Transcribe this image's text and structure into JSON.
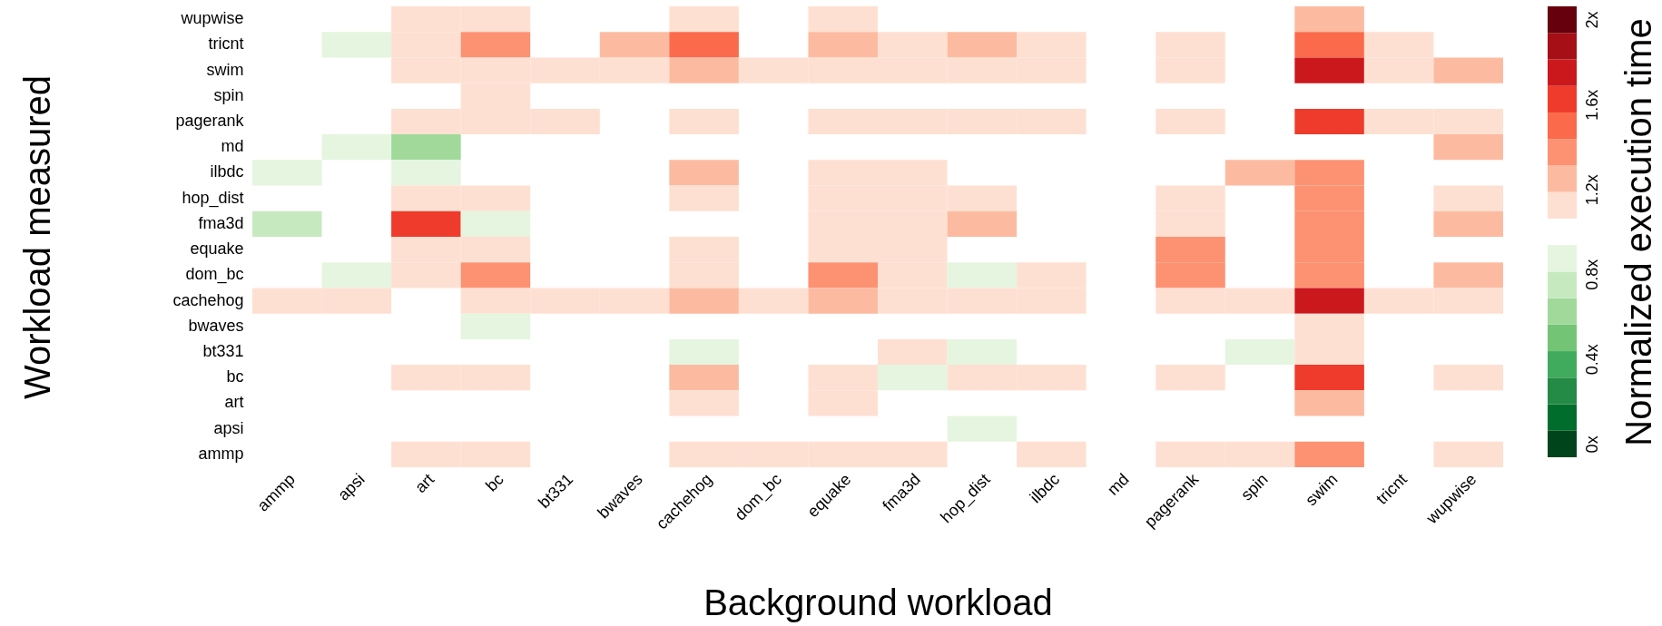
{
  "chart_data": {
    "type": "heatmap",
    "xlabel": "Background workload",
    "ylabel": "Workload measured",
    "clabel": "Normalized execution time",
    "categories": [
      "ammp",
      "apsi",
      "art",
      "bc",
      "bt331",
      "bwaves",
      "cachehog",
      "dom_bc",
      "equake",
      "fma3d",
      "hop_dist",
      "ilbdc",
      "md",
      "pagerank",
      "spin",
      "swim",
      "tricnt",
      "wupwise"
    ],
    "y_categories": [
      "wupwise",
      "tricnt",
      "swim",
      "spin",
      "pagerank",
      "md",
      "ilbdc",
      "hop_dist",
      "fma3d",
      "equake",
      "dom_bc",
      "cachehog",
      "bwaves",
      "bt331",
      "bc",
      "art",
      "apsi",
      "ammp"
    ],
    "cells": [
      [
        null,
        null,
        1.125,
        1.125,
        null,
        null,
        1.125,
        null,
        1.125,
        null,
        null,
        null,
        null,
        null,
        null,
        1.25,
        null,
        null
      ],
      [
        null,
        0.875,
        1.125,
        1.375,
        null,
        1.25,
        1.5,
        null,
        1.25,
        1.125,
        1.25,
        1.125,
        null,
        1.125,
        null,
        1.5,
        1.125,
        null
      ],
      [
        null,
        null,
        1.125,
        1.125,
        1.125,
        1.125,
        1.25,
        1.125,
        1.125,
        1.125,
        1.125,
        1.125,
        null,
        1.125,
        null,
        1.75,
        1.125,
        1.25
      ],
      [
        null,
        null,
        null,
        1.125,
        null,
        null,
        null,
        null,
        null,
        null,
        null,
        null,
        null,
        null,
        null,
        null,
        null,
        null
      ],
      [
        null,
        null,
        1.125,
        1.125,
        1.125,
        null,
        1.125,
        null,
        1.125,
        1.125,
        1.125,
        1.125,
        null,
        1.125,
        null,
        1.625,
        1.125,
        1.125
      ],
      [
        null,
        0.875,
        0.625,
        null,
        null,
        null,
        null,
        null,
        null,
        null,
        null,
        null,
        null,
        null,
        null,
        null,
        null,
        1.25
      ],
      [
        0.875,
        null,
        0.875,
        null,
        null,
        null,
        1.25,
        null,
        1.125,
        1.125,
        null,
        null,
        null,
        null,
        1.25,
        1.375,
        null,
        null
      ],
      [
        null,
        null,
        1.125,
        1.125,
        null,
        null,
        1.125,
        null,
        1.125,
        1.125,
        1.125,
        null,
        null,
        1.125,
        null,
        1.375,
        null,
        1.125
      ],
      [
        0.75,
        null,
        1.625,
        0.875,
        null,
        null,
        null,
        null,
        1.125,
        1.125,
        1.25,
        null,
        null,
        1.125,
        null,
        1.375,
        null,
        1.25
      ],
      [
        null,
        null,
        1.125,
        1.125,
        null,
        null,
        1.125,
        null,
        1.125,
        1.125,
        null,
        null,
        null,
        1.375,
        null,
        1.375,
        null,
        null
      ],
      [
        null,
        0.875,
        1.125,
        1.375,
        null,
        null,
        1.125,
        null,
        1.375,
        1.125,
        0.875,
        1.125,
        null,
        1.375,
        null,
        1.375,
        null,
        1.25
      ],
      [
        1.125,
        1.125,
        null,
        1.125,
        1.125,
        1.125,
        1.25,
        1.125,
        1.25,
        1.125,
        1.125,
        1.125,
        null,
        1.125,
        1.125,
        1.75,
        1.125,
        1.125
      ],
      [
        null,
        null,
        null,
        0.875,
        null,
        null,
        null,
        null,
        null,
        null,
        null,
        null,
        null,
        null,
        null,
        1.125,
        null,
        null
      ],
      [
        null,
        null,
        null,
        null,
        null,
        null,
        0.875,
        null,
        null,
        1.125,
        0.875,
        null,
        null,
        null,
        0.875,
        1.125,
        null,
        null
      ],
      [
        null,
        null,
        1.125,
        1.125,
        null,
        null,
        1.25,
        null,
        1.125,
        0.875,
        1.125,
        1.125,
        null,
        1.125,
        null,
        1.625,
        null,
        1.125
      ],
      [
        null,
        null,
        null,
        null,
        null,
        null,
        1.125,
        null,
        1.125,
        null,
        null,
        null,
        null,
        null,
        null,
        1.25,
        null,
        null
      ],
      [
        null,
        null,
        null,
        null,
        null,
        null,
        null,
        null,
        null,
        null,
        0.875,
        null,
        null,
        null,
        null,
        null,
        null,
        null
      ],
      [
        null,
        null,
        1.125,
        1.125,
        null,
        null,
        1.125,
        1.125,
        1.125,
        1.125,
        null,
        1.125,
        null,
        1.125,
        1.125,
        1.375,
        null,
        1.125
      ]
    ],
    "clim": [
      -0.0625,
      2.0625
    ],
    "cticks": [
      {
        "value": 0,
        "label": "0x"
      },
      {
        "value": 0.4,
        "label": "0.4x"
      },
      {
        "value": 0.8,
        "label": "0.8x"
      },
      {
        "value": 1.2,
        "label": "1.2x"
      },
      {
        "value": 1.6,
        "label": "1.6x"
      },
      {
        "value": 2,
        "label": "2x"
      }
    ]
  }
}
